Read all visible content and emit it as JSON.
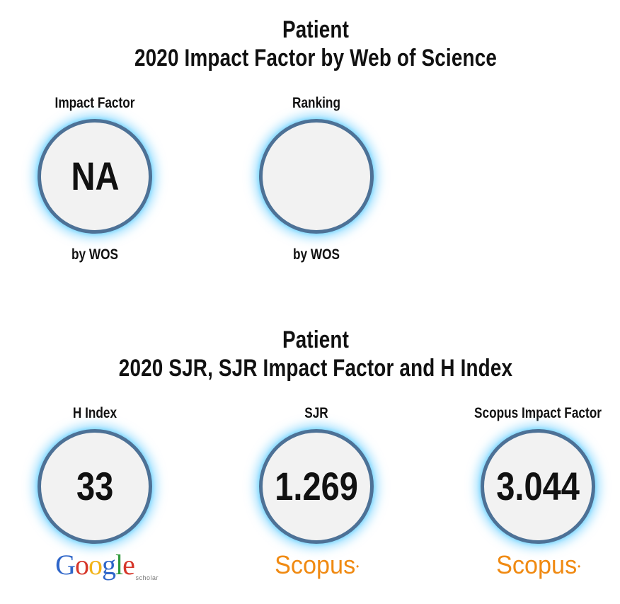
{
  "section1": {
    "journal": "Patient",
    "heading": "2020 Impact Factor by Web of Science",
    "metrics": [
      {
        "label": "Impact Factor",
        "value": "NA",
        "sub": "by WOS"
      },
      {
        "label": "Ranking",
        "value": "",
        "sub": "by WOS"
      }
    ]
  },
  "section2": {
    "journal": "Patient",
    "heading": "2020 SJR, SJR Impact Factor and H Index",
    "metrics": [
      {
        "label": "H Index",
        "value": "33",
        "source": "Google scholar"
      },
      {
        "label": "SJR",
        "value": "1.269",
        "source": "Scopus"
      },
      {
        "label": "Scopus Impact Factor",
        "value": "3.044",
        "source": "Scopus"
      }
    ]
  },
  "logos": {
    "google": "Google",
    "google_sub": "scholar",
    "scopus": "Scopus"
  },
  "colors": {
    "circle_border": "#4d7196",
    "circle_fill": "#f2f2f2",
    "glow": "#5ac8ff",
    "scopus_orange": "#f08a12"
  }
}
